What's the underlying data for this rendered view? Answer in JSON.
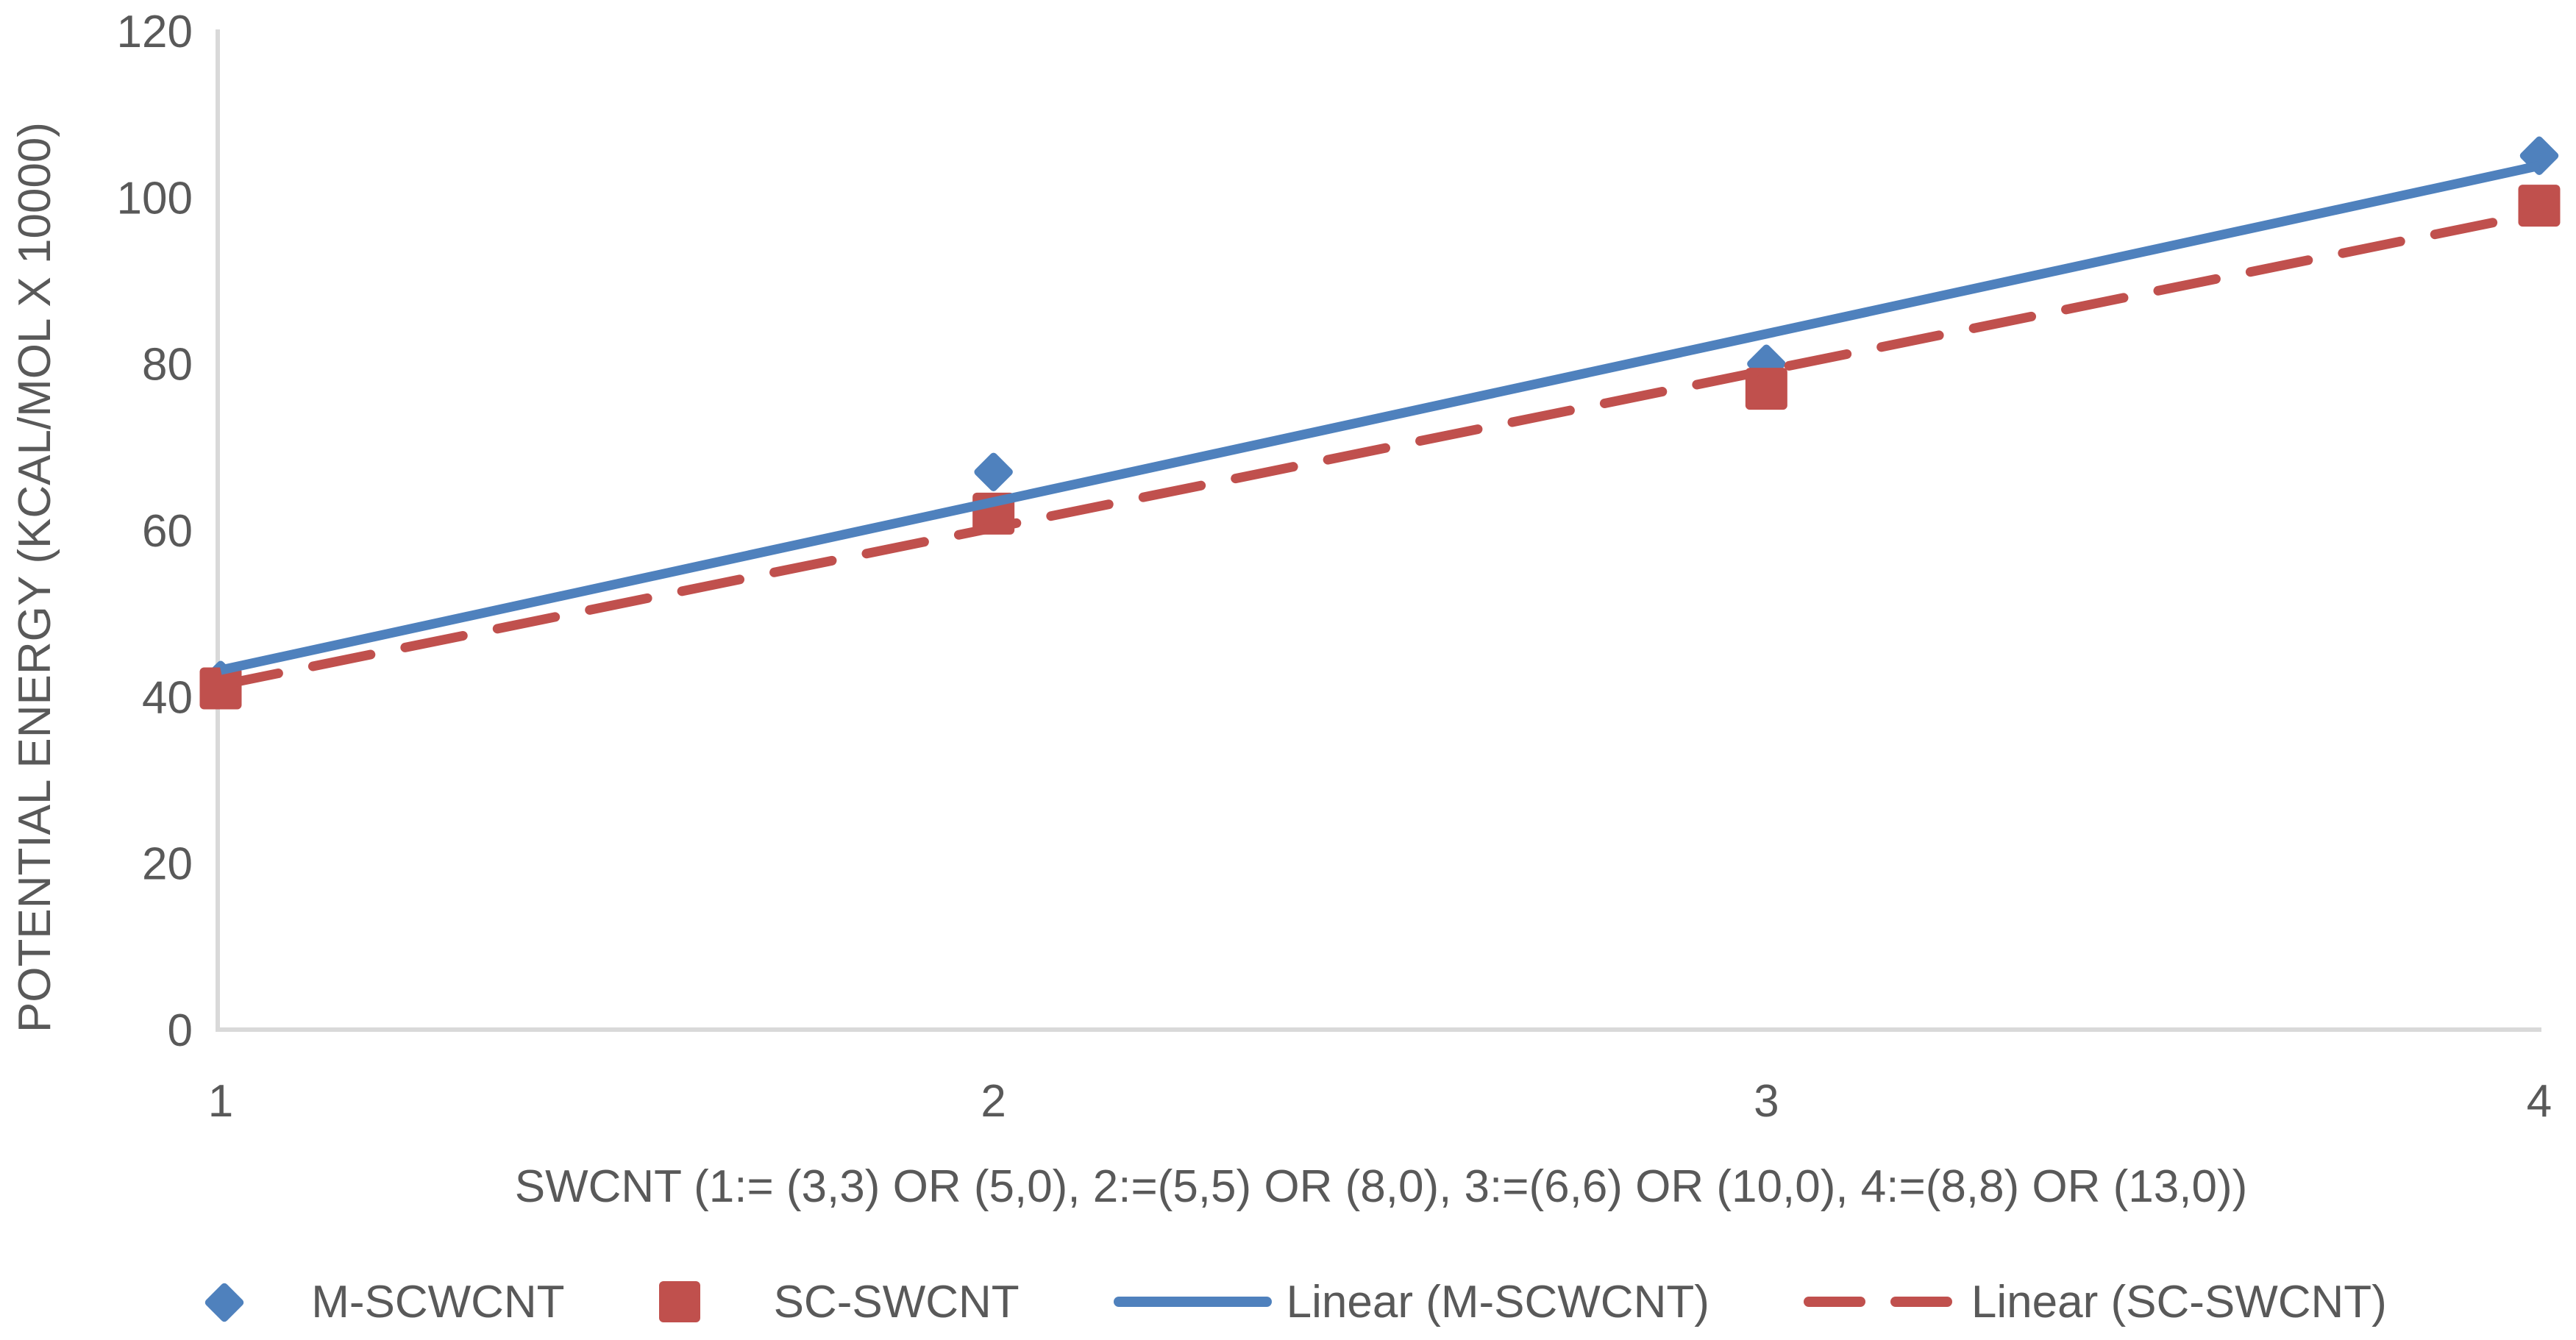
{
  "chart_data": {
    "type": "scatter",
    "x": [
      1,
      2,
      3,
      4
    ],
    "series": [
      {
        "name": "M-SCWCNT",
        "values": [
          42,
          67,
          80,
          105
        ],
        "color": "#4F81BD",
        "marker": "diamond"
      },
      {
        "name": "SC-SWCNT",
        "values": [
          41,
          62,
          77,
          99
        ],
        "color": "#C0504D",
        "marker": "square"
      }
    ],
    "trendlines": [
      {
        "name": "Linear (M-SCWCNT)",
        "series_index": 0,
        "style": "solid",
        "color": "#4F81BD"
      },
      {
        "name": "Linear (SC-SWCNT)",
        "series_index": 1,
        "style": "dashed",
        "color": "#C0504D"
      }
    ],
    "title": "",
    "xlabel": "SWCNT (1:= (3,3) OR (5,0), 2:=(5,5) OR (8,0), 3:=(6,6) OR (10,0), 4:=(8,8) OR (13,0))",
    "ylabel": "POTENTIAL ENERGY (KCAL/MOL X 10000)",
    "xticks": [
      "1",
      "2",
      "3",
      "4"
    ],
    "yticks": [
      "0",
      "20",
      "40",
      "60",
      "80",
      "100",
      "120"
    ],
    "ylim": [
      0,
      120
    ],
    "xlim": [
      1,
      4
    ],
    "grid": false,
    "legend_position": "bottom"
  },
  "colors": {
    "axis_line": "#D9D9D9",
    "tick_text": "#595959",
    "background": "#FFFFFF",
    "series1": "#4F81BD",
    "series2": "#C0504D"
  }
}
